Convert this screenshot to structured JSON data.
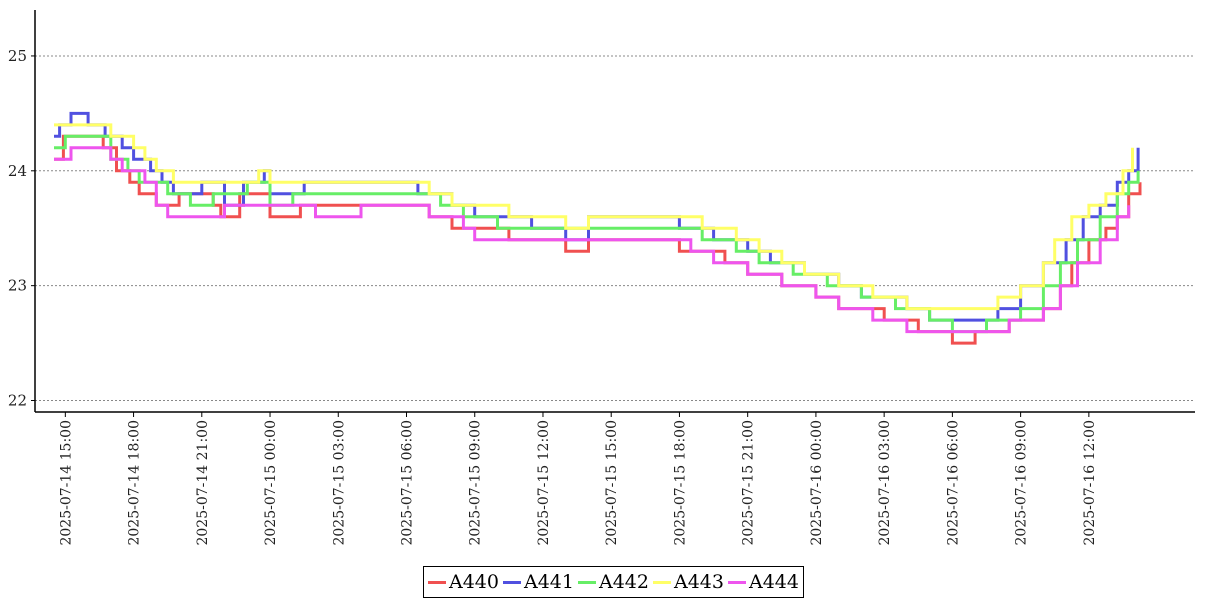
{
  "chart_data": {
    "type": "line",
    "title": "",
    "xlabel": "",
    "ylabel": "",
    "ylim": [
      21.9,
      25.4
    ],
    "xlim": [
      "2025-07-14 13:40",
      "2025-07-16 16:40"
    ],
    "yticks": [
      "22",
      "23",
      "24",
      "25"
    ],
    "xticks": [
      "2025-07-14 15:00",
      "2025-07-14 18:00",
      "2025-07-14 21:00",
      "2025-07-15 00:00",
      "2025-07-15 03:00",
      "2025-07-15 06:00",
      "2025-07-15 09:00",
      "2025-07-15 12:00",
      "2025-07-15 15:00",
      "2025-07-15 18:00",
      "2025-07-15 21:00",
      "2025-07-16 00:00",
      "2025-07-16 03:00",
      "2025-07-16 06:00",
      "2025-07-16 09:00",
      "2025-07-16 12:00"
    ],
    "grid": "horizontal",
    "legend_position": "bottom-center",
    "step": true,
    "series": [
      {
        "name": "A440",
        "color": "#f05050",
        "points": [
          [
            "2025-07-14 14:30",
            24.1
          ],
          [
            "2025-07-14 14:55",
            24.3
          ],
          [
            "2025-07-14 16:00",
            24.3
          ],
          [
            "2025-07-14 16:40",
            24.2
          ],
          [
            "2025-07-14 17:15",
            24.0
          ],
          [
            "2025-07-14 17:50",
            23.9
          ],
          [
            "2025-07-14 18:15",
            23.8
          ],
          [
            "2025-07-14 19:00",
            23.7
          ],
          [
            "2025-07-14 20:00",
            23.8
          ],
          [
            "2025-07-14 21:30",
            23.7
          ],
          [
            "2025-07-14 21:50",
            23.6
          ],
          [
            "2025-07-14 22:40",
            23.8
          ],
          [
            "2025-07-15 00:00",
            23.6
          ],
          [
            "2025-07-15 01:20",
            23.7
          ],
          [
            "2025-07-15 07:00",
            23.6
          ],
          [
            "2025-07-15 08:00",
            23.5
          ],
          [
            "2025-07-15 09:00",
            23.5
          ],
          [
            "2025-07-15 10:30",
            23.4
          ],
          [
            "2025-07-15 13:00",
            23.3
          ],
          [
            "2025-07-15 14:00",
            23.4
          ],
          [
            "2025-07-15 18:00",
            23.3
          ],
          [
            "2025-07-15 20:00",
            23.2
          ],
          [
            "2025-07-15 21:00",
            23.1
          ],
          [
            "2025-07-15 22:30",
            23.0
          ],
          [
            "2025-07-16 00:00",
            22.9
          ],
          [
            "2025-07-16 01:00",
            22.8
          ],
          [
            "2025-07-16 03:00",
            22.7
          ],
          [
            "2025-07-16 04:30",
            22.6
          ],
          [
            "2025-07-16 06:00",
            22.5
          ],
          [
            "2025-07-16 07:00",
            22.6
          ],
          [
            "2025-07-16 08:30",
            22.7
          ],
          [
            "2025-07-16 10:00",
            22.8
          ],
          [
            "2025-07-16 10:45",
            23.0
          ],
          [
            "2025-07-16 11:15",
            23.2
          ],
          [
            "2025-07-16 12:00",
            23.4
          ],
          [
            "2025-07-16 12:45",
            23.5
          ],
          [
            "2025-07-16 13:15",
            23.6
          ],
          [
            "2025-07-16 13:45",
            23.8
          ],
          [
            "2025-07-16 14:15",
            23.9
          ]
        ]
      },
      {
        "name": "A441",
        "color": "#5050e0",
        "points": [
          [
            "2025-07-14 14:30",
            24.3
          ],
          [
            "2025-07-14 14:45",
            24.4
          ],
          [
            "2025-07-14 15:15",
            24.5
          ],
          [
            "2025-07-14 16:00",
            24.4
          ],
          [
            "2025-07-14 16:45",
            24.3
          ],
          [
            "2025-07-14 17:30",
            24.2
          ],
          [
            "2025-07-14 18:00",
            24.1
          ],
          [
            "2025-07-14 18:45",
            24.0
          ],
          [
            "2025-07-14 19:15",
            23.9
          ],
          [
            "2025-07-14 19:45",
            23.8
          ],
          [
            "2025-07-14 21:00",
            23.9
          ],
          [
            "2025-07-14 22:00",
            23.7
          ],
          [
            "2025-07-14 22:50",
            23.9
          ],
          [
            "2025-07-14 23:45",
            24.0
          ],
          [
            "2025-07-15 00:00",
            23.8
          ],
          [
            "2025-07-15 01:30",
            23.9
          ],
          [
            "2025-07-15 06:30",
            23.8
          ],
          [
            "2025-07-15 08:00",
            23.7
          ],
          [
            "2025-07-15 09:00",
            23.6
          ],
          [
            "2025-07-15 11:30",
            23.5
          ],
          [
            "2025-07-15 13:00",
            23.4
          ],
          [
            "2025-07-15 14:00",
            23.6
          ],
          [
            "2025-07-15 18:00",
            23.5
          ],
          [
            "2025-07-15 19:30",
            23.4
          ],
          [
            "2025-07-15 21:00",
            23.3
          ],
          [
            "2025-07-15 22:00",
            23.2
          ],
          [
            "2025-07-15 23:30",
            23.1
          ],
          [
            "2025-07-16 01:00",
            23.0
          ],
          [
            "2025-07-16 02:00",
            22.9
          ],
          [
            "2025-07-16 04:00",
            22.8
          ],
          [
            "2025-07-16 05:00",
            22.7
          ],
          [
            "2025-07-16 08:00",
            22.8
          ],
          [
            "2025-07-16 09:00",
            23.0
          ],
          [
            "2025-07-16 10:00",
            23.2
          ],
          [
            "2025-07-16 11:00",
            23.4
          ],
          [
            "2025-07-16 11:45",
            23.6
          ],
          [
            "2025-07-16 12:30",
            23.7
          ],
          [
            "2025-07-16 13:15",
            23.9
          ],
          [
            "2025-07-16 13:45",
            24.0
          ],
          [
            "2025-07-16 14:10",
            24.2
          ]
        ]
      },
      {
        "name": "A442",
        "color": "#66ee66",
        "points": [
          [
            "2025-07-14 14:30",
            24.2
          ],
          [
            "2025-07-14 15:00",
            24.3
          ],
          [
            "2025-07-14 16:30",
            24.3
          ],
          [
            "2025-07-14 17:00",
            24.1
          ],
          [
            "2025-07-14 17:45",
            24.0
          ],
          [
            "2025-07-14 18:15",
            23.9
          ],
          [
            "2025-07-14 19:30",
            23.8
          ],
          [
            "2025-07-14 20:30",
            23.7
          ],
          [
            "2025-07-14 21:30",
            23.8
          ],
          [
            "2025-07-14 23:00",
            23.9
          ],
          [
            "2025-07-15 00:00",
            23.7
          ],
          [
            "2025-07-15 01:00",
            23.8
          ],
          [
            "2025-07-15 06:00",
            23.8
          ],
          [
            "2025-07-15 07:30",
            23.7
          ],
          [
            "2025-07-15 08:30",
            23.6
          ],
          [
            "2025-07-15 10:00",
            23.5
          ],
          [
            "2025-07-15 12:00",
            23.5
          ],
          [
            "2025-07-15 13:30",
            23.5
          ],
          [
            "2025-07-15 18:00",
            23.5
          ],
          [
            "2025-07-15 19:00",
            23.4
          ],
          [
            "2025-07-15 20:30",
            23.3
          ],
          [
            "2025-07-15 21:30",
            23.2
          ],
          [
            "2025-07-15 23:00",
            23.1
          ],
          [
            "2025-07-16 00:30",
            23.0
          ],
          [
            "2025-07-16 02:00",
            22.9
          ],
          [
            "2025-07-16 03:30",
            22.8
          ],
          [
            "2025-07-16 05:00",
            22.7
          ],
          [
            "2025-07-16 06:00",
            22.6
          ],
          [
            "2025-07-16 07:30",
            22.7
          ],
          [
            "2025-07-16 09:00",
            22.8
          ],
          [
            "2025-07-16 10:00",
            23.0
          ],
          [
            "2025-07-16 10:45",
            23.2
          ],
          [
            "2025-07-16 11:30",
            23.4
          ],
          [
            "2025-07-16 12:30",
            23.6
          ],
          [
            "2025-07-16 13:15",
            23.8
          ],
          [
            "2025-07-16 13:45",
            23.9
          ],
          [
            "2025-07-16 14:10",
            24.0
          ]
        ]
      },
      {
        "name": "A443",
        "color": "#ffff66",
        "points": [
          [
            "2025-07-14 14:30",
            24.4
          ],
          [
            "2025-07-14 15:30",
            24.4
          ],
          [
            "2025-07-14 16:30",
            24.4
          ],
          [
            "2025-07-14 17:00",
            24.3
          ],
          [
            "2025-07-14 18:00",
            24.2
          ],
          [
            "2025-07-14 18:30",
            24.1
          ],
          [
            "2025-07-14 19:00",
            24.0
          ],
          [
            "2025-07-14 19:45",
            23.9
          ],
          [
            "2025-07-14 22:00",
            23.9
          ],
          [
            "2025-07-14 23:30",
            24.0
          ],
          [
            "2025-07-15 00:00",
            23.9
          ],
          [
            "2025-07-15 06:00",
            23.9
          ],
          [
            "2025-07-15 07:00",
            23.8
          ],
          [
            "2025-07-15 08:00",
            23.7
          ],
          [
            "2025-07-15 09:00",
            23.7
          ],
          [
            "2025-07-15 10:30",
            23.6
          ],
          [
            "2025-07-15 13:00",
            23.5
          ],
          [
            "2025-07-15 14:00",
            23.6
          ],
          [
            "2025-07-15 17:30",
            23.6
          ],
          [
            "2025-07-15 19:00",
            23.5
          ],
          [
            "2025-07-15 20:30",
            23.4
          ],
          [
            "2025-07-15 21:30",
            23.3
          ],
          [
            "2025-07-15 22:30",
            23.2
          ],
          [
            "2025-07-15 23:30",
            23.1
          ],
          [
            "2025-07-16 01:00",
            23.0
          ],
          [
            "2025-07-16 02:30",
            22.9
          ],
          [
            "2025-07-16 04:00",
            22.8
          ],
          [
            "2025-07-16 06:00",
            22.8
          ],
          [
            "2025-07-16 08:00",
            22.9
          ],
          [
            "2025-07-16 09:00",
            23.0
          ],
          [
            "2025-07-16 10:00",
            23.2
          ],
          [
            "2025-07-16 10:30",
            23.4
          ],
          [
            "2025-07-16 11:15",
            23.6
          ],
          [
            "2025-07-16 12:00",
            23.7
          ],
          [
            "2025-07-16 12:45",
            23.8
          ],
          [
            "2025-07-16 13:30",
            24.0
          ],
          [
            "2025-07-16 13:55",
            24.2
          ]
        ]
      },
      {
        "name": "A444",
        "color": "#ee55ee",
        "points": [
          [
            "2025-07-14 14:30",
            24.1
          ],
          [
            "2025-07-14 15:15",
            24.2
          ],
          [
            "2025-07-14 16:30",
            24.2
          ],
          [
            "2025-07-14 17:00",
            24.1
          ],
          [
            "2025-07-14 17:30",
            24.0
          ],
          [
            "2025-07-14 18:30",
            23.9
          ],
          [
            "2025-07-14 19:00",
            23.7
          ],
          [
            "2025-07-14 19:30",
            23.6
          ],
          [
            "2025-07-14 20:00",
            23.6
          ],
          [
            "2025-07-14 21:00",
            23.6
          ],
          [
            "2025-07-14 22:00",
            23.7
          ],
          [
            "2025-07-14 23:00",
            23.7
          ],
          [
            "2025-07-15 02:00",
            23.6
          ],
          [
            "2025-07-15 04:00",
            23.7
          ],
          [
            "2025-07-15 07:00",
            23.6
          ],
          [
            "2025-07-15 08:30",
            23.5
          ],
          [
            "2025-07-15 09:00",
            23.4
          ],
          [
            "2025-07-15 13:00",
            23.4
          ],
          [
            "2025-07-15 14:00",
            23.4
          ],
          [
            "2025-07-15 18:30",
            23.3
          ],
          [
            "2025-07-15 19:30",
            23.2
          ],
          [
            "2025-07-15 21:00",
            23.1
          ],
          [
            "2025-07-15 22:30",
            23.0
          ],
          [
            "2025-07-16 00:00",
            22.9
          ],
          [
            "2025-07-16 01:00",
            22.8
          ],
          [
            "2025-07-16 02:30",
            22.7
          ],
          [
            "2025-07-16 04:00",
            22.6
          ],
          [
            "2025-07-16 07:00",
            22.6
          ],
          [
            "2025-07-16 08:30",
            22.7
          ],
          [
            "2025-07-16 10:00",
            22.8
          ],
          [
            "2025-07-16 10:45",
            23.0
          ],
          [
            "2025-07-16 11:30",
            23.2
          ],
          [
            "2025-07-16 12:30",
            23.4
          ],
          [
            "2025-07-16 13:15",
            23.6
          ],
          [
            "2025-07-16 13:45",
            23.7
          ]
        ]
      }
    ]
  }
}
